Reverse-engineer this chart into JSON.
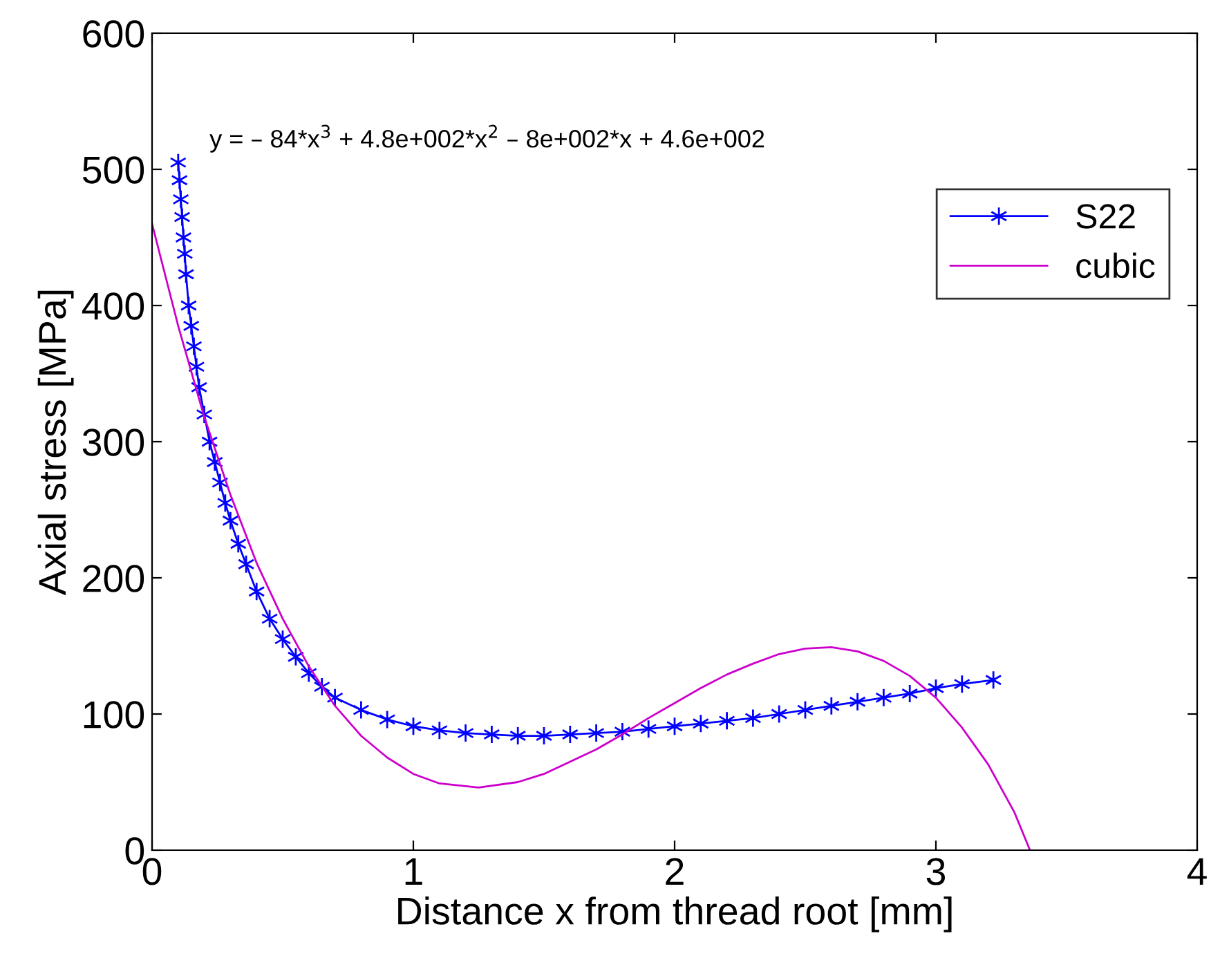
{
  "chart_data": {
    "type": "line",
    "xlabel": "Distance x from thread root [mm]",
    "ylabel": "Axial stress [MPa]",
    "xlim": [
      0,
      4
    ],
    "xticks": [
      0,
      1,
      2,
      3,
      4
    ],
    "ylim": [
      0,
      600
    ],
    "yticks": [
      0,
      100,
      200,
      300,
      400,
      500,
      600
    ],
    "grid": false,
    "legend": "top right",
    "annotations": [
      "y = – 84*x$^{3}$ + 4.8e+002*x$^{2}$ – 8e+002*x + 4.6e+002"
    ],
    "series": [
      {
        "name": "S22",
        "color": "#0000ff",
        "marker": "cross",
        "line_style": "solid",
        "x": [
          0.1,
          0.105,
          0.11,
          0.115,
          0.12,
          0.125,
          0.13,
          0.14,
          0.15,
          0.16,
          0.17,
          0.18,
          0.2,
          0.22,
          0.24,
          0.26,
          0.28,
          0.3,
          0.33,
          0.36,
          0.4,
          0.45,
          0.5,
          0.55,
          0.6,
          0.65,
          0.7,
          0.8,
          0.9,
          1.0,
          1.1,
          1.2,
          1.3,
          1.4,
          1.5,
          1.6,
          1.7,
          1.8,
          1.9,
          2.0,
          2.1,
          2.2,
          2.3,
          2.4,
          2.5,
          2.6,
          2.7,
          2.8,
          2.9,
          3.0,
          3.1,
          3.22
        ],
        "values": [
          505,
          492,
          478,
          465,
          450,
          438,
          423,
          400,
          385,
          370,
          355,
          340,
          320,
          300,
          285,
          270,
          255,
          242,
          225,
          210,
          190,
          170,
          155,
          142,
          130,
          120,
          112,
          103,
          96,
          91,
          88,
          86,
          85,
          84,
          84,
          85,
          86,
          87,
          89,
          91,
          93,
          95,
          97,
          100,
          103,
          106,
          109,
          112,
          115,
          119,
          122,
          125
        ]
      },
      {
        "name": "cubic",
        "color": "#cc00cc",
        "marker": "none",
        "line_style": "solid",
        "x": [
          0,
          0.1,
          0.2,
          0.3,
          0.4,
          0.5,
          0.6,
          0.7,
          0.8,
          0.9,
          1.0,
          1.1,
          1.25,
          1.4,
          1.5,
          1.6,
          1.7,
          1.8,
          1.9,
          2.0,
          2.1,
          2.2,
          2.3,
          2.4,
          2.5,
          2.6,
          2.7,
          2.8,
          2.9,
          3.0,
          3.1,
          3.2,
          3.3,
          3.36
        ],
        "values": [
          460,
          385,
          318,
          261,
          211,
          170,
          135,
          106,
          84,
          68,
          56,
          49,
          46,
          50,
          56,
          65,
          74,
          85,
          97,
          108,
          119,
          129,
          137,
          144,
          148,
          149,
          146,
          139,
          128,
          112,
          90,
          63,
          28,
          0
        ]
      }
    ]
  }
}
